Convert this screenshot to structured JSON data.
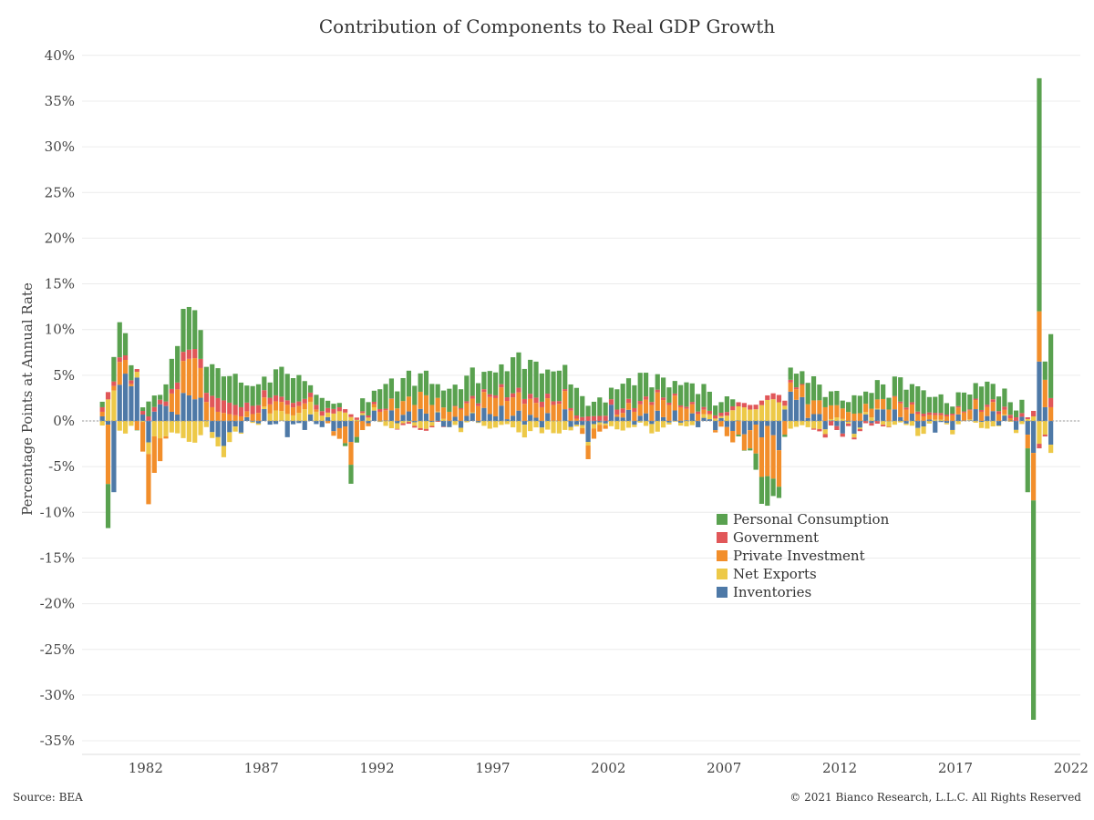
{
  "chart_data": {
    "type": "bar",
    "stacked": true,
    "title": "Contribution of Components to Real GDP Growth",
    "ylabel": "Percentage Points at Annual Rate",
    "xlabel": "",
    "ylim": [
      -35,
      40
    ],
    "yticks": [
      -35,
      -30,
      -25,
      -20,
      -15,
      -10,
      -5,
      0,
      5,
      10,
      15,
      20,
      25,
      30,
      35,
      40
    ],
    "ytick_format": "percent",
    "xticks": [
      1982,
      1987,
      1992,
      1997,
      2002,
      2007,
      2012,
      2017,
      2022
    ],
    "x_range": [
      1979.25,
      2022.4
    ],
    "grid": "horizontal",
    "legend_position": "center-right",
    "series": [
      {
        "name": "Personal Consumption",
        "color": "#59A14F",
        "key": "pce"
      },
      {
        "name": "Government",
        "color": "#E15759",
        "key": "gov"
      },
      {
        "name": "Private Investment",
        "color": "#F28E2B",
        "key": "inv"
      },
      {
        "name": "Net Exports",
        "color": "#EDC948",
        "key": "nx"
      },
      {
        "name": "Inventories",
        "color": "#4E79A7",
        "key": "cip"
      }
    ],
    "anchors": [
      {
        "t": 1980.0,
        "pce": 0.6,
        "gov": 0.5,
        "inv": 0.5,
        "nx": -0.5,
        "cip": 0.5
      },
      {
        "t": 1980.25,
        "pce": -5.5,
        "gov": 0.8,
        "inv": -6.5,
        "nx": 2.0,
        "cip": -1.0
      },
      {
        "t": 1980.5,
        "pce": 2.5,
        "gov": 0.5,
        "inv": 0.5,
        "nx": 3.0,
        "cip": -7.0
      },
      {
        "t": 1980.75,
        "pce": 4.0,
        "gov": 0.5,
        "inv": 2.5,
        "nx": -1.0,
        "cip": 3.5
      },
      {
        "t": 1981.0,
        "pce": 2.0,
        "gov": 0.5,
        "inv": 1.5,
        "nx": -1.0,
        "cip": 5.0
      },
      {
        "t": 1981.5,
        "pce": 0.5,
        "gov": 0.3,
        "inv": -1.0,
        "nx": 0.5,
        "cip": 4.0
      },
      {
        "t": 1982.0,
        "pce": 1.5,
        "gov": 0.5,
        "inv": -5.5,
        "nx": -1.5,
        "cip": -2.0
      },
      {
        "t": 1982.5,
        "pce": 1.0,
        "gov": 0.5,
        "inv": -2.5,
        "nx": -1.5,
        "cip": 2.5
      },
      {
        "t": 1983.0,
        "pce": 2.5,
        "gov": 0.5,
        "inv": 2.0,
        "nx": -1.5,
        "cip": 0.5
      },
      {
        "t": 1983.5,
        "pce": 5.0,
        "gov": 1.0,
        "inv": 3.5,
        "nx": -2.0,
        "cip": 2.5
      },
      {
        "t": 1984.0,
        "pce": 4.0,
        "gov": 1.0,
        "inv": 4.5,
        "nx": -2.0,
        "cip": 3.0
      },
      {
        "t": 1984.5,
        "pce": 3.5,
        "gov": 1.0,
        "inv": 2.0,
        "nx": -1.0,
        "cip": 0.5
      },
      {
        "t": 1985.0,
        "pce": 3.0,
        "gov": 1.5,
        "inv": 1.0,
        "nx": -1.0,
        "cip": -2.5
      },
      {
        "t": 1986.0,
        "pce": 2.5,
        "gov": 1.0,
        "inv": 0.5,
        "nx": -0.5,
        "cip": -0.5
      },
      {
        "t": 1987.0,
        "pce": 2.0,
        "gov": 0.8,
        "inv": 1.0,
        "nx": 0.5,
        "cip": 0.5
      },
      {
        "t": 1988.0,
        "pce": 3.0,
        "gov": 0.5,
        "inv": 1.0,
        "nx": 1.0,
        "cip": -1.0
      },
      {
        "t": 1989.0,
        "pce": 1.5,
        "gov": 0.5,
        "inv": 0.5,
        "nx": 1.0,
        "cip": 0.0
      },
      {
        "t": 1990.0,
        "pce": 1.0,
        "gov": 0.5,
        "inv": -0.5,
        "nx": 0.8,
        "cip": -0.5
      },
      {
        "t": 1990.75,
        "pce": -2.0,
        "gov": 0.3,
        "inv": -2.5,
        "nx": 0.5,
        "cip": -1.5
      },
      {
        "t": 1991.25,
        "pce": 1.0,
        "gov": 0.2,
        "inv": -1.0,
        "nx": 0.5,
        "cip": 0.5
      },
      {
        "t": 1992.0,
        "pce": 2.5,
        "gov": 0.3,
        "inv": 1.0,
        "nx": -0.3,
        "cip": 0.3
      },
      {
        "t": 1993.0,
        "pce": 2.0,
        "gov": -0.2,
        "inv": 1.5,
        "nx": -0.5,
        "cip": 0.5
      },
      {
        "t": 1994.0,
        "pce": 2.5,
        "gov": -0.2,
        "inv": 2.0,
        "nx": -0.5,
        "cip": 0.8
      },
      {
        "t": 1995.0,
        "pce": 2.0,
        "gov": 0.0,
        "inv": 1.0,
        "nx": 0.0,
        "cip": -0.5
      },
      {
        "t": 1996.0,
        "pce": 2.5,
        "gov": 0.3,
        "inv": 1.5,
        "nx": -0.3,
        "cip": 0.5
      },
      {
        "t": 1997.0,
        "pce": 2.5,
        "gov": 0.3,
        "inv": 2.0,
        "nx": -0.5,
        "cip": 1.0
      },
      {
        "t": 1998.0,
        "pce": 3.5,
        "gov": 0.5,
        "inv": 2.0,
        "nx": -1.0,
        "cip": 0.5
      },
      {
        "t": 1999.0,
        "pce": 3.5,
        "gov": 0.6,
        "inv": 1.5,
        "nx": -1.0,
        "cip": 0.0
      },
      {
        "t": 2000.0,
        "pce": 3.0,
        "gov": 0.2,
        "inv": 2.0,
        "nx": -1.0,
        "cip": 0.5
      },
      {
        "t": 2001.0,
        "pce": 1.5,
        "gov": 0.5,
        "inv": -1.5,
        "nx": 0.0,
        "cip": -1.5
      },
      {
        "t": 2002.0,
        "pce": 2.0,
        "gov": 0.6,
        "inv": 0.0,
        "nx": -0.8,
        "cip": 1.0
      },
      {
        "t": 2003.0,
        "pce": 2.5,
        "gov": 0.4,
        "inv": 1.0,
        "nx": -0.5,
        "cip": 0.3
      },
      {
        "t": 2004.0,
        "pce": 2.0,
        "gov": 0.3,
        "inv": 2.0,
        "nx": -0.8,
        "cip": 0.5
      },
      {
        "t": 2005.0,
        "pce": 2.0,
        "gov": 0.2,
        "inv": 1.5,
        "nx": -0.3,
        "cip": 0.3
      },
      {
        "t": 2006.0,
        "pce": 2.0,
        "gov": 0.3,
        "inv": 0.5,
        "nx": 0.0,
        "cip": 0.0
      },
      {
        "t": 2007.0,
        "pce": 1.5,
        "gov": 0.4,
        "inv": -1.0,
        "nx": 0.8,
        "cip": -0.5
      },
      {
        "t": 2008.0,
        "pce": -1.0,
        "gov": 0.5,
        "inv": -2.0,
        "nx": 1.5,
        "cip": -1.0
      },
      {
        "t": 2008.75,
        "pce": -3.5,
        "gov": 0.5,
        "inv": -5.5,
        "nx": 2.0,
        "cip": -1.0
      },
      {
        "t": 2009.25,
        "pce": -0.5,
        "gov": 0.8,
        "inv": -4.0,
        "nx": 2.0,
        "cip": -2.5
      },
      {
        "t": 2009.75,
        "pce": 1.0,
        "gov": 0.3,
        "inv": 1.0,
        "nx": -0.5,
        "cip": 3.5
      },
      {
        "t": 2010.5,
        "pce": 2.0,
        "gov": 0.0,
        "inv": 1.5,
        "nx": -1.0,
        "cip": 1.0
      },
      {
        "t": 2011.5,
        "pce": 1.5,
        "gov": -0.5,
        "inv": 1.5,
        "nx": 0.0,
        "cip": -0.5
      },
      {
        "t": 2012.5,
        "pce": 1.5,
        "gov": -0.2,
        "inv": 0.8,
        "nx": 0.0,
        "cip": -1.0
      },
      {
        "t": 2013.5,
        "pce": 1.5,
        "gov": -0.3,
        "inv": 1.0,
        "nx": 0.0,
        "cip": 1.0
      },
      {
        "t": 2014.5,
        "pce": 2.5,
        "gov": 0.2,
        "inv": 1.5,
        "nx": -0.5,
        "cip": 0.5
      },
      {
        "t": 2015.5,
        "pce": 2.0,
        "gov": 0.3,
        "inv": 0.5,
        "nx": -0.5,
        "cip": -0.5
      },
      {
        "t": 2016.5,
        "pce": 1.5,
        "gov": 0.2,
        "inv": 0.5,
        "nx": 0.0,
        "cip": -0.5
      },
      {
        "t": 2017.5,
        "pce": 1.8,
        "gov": 0.1,
        "inv": 1.0,
        "nx": -0.3,
        "cip": 0.5
      },
      {
        "t": 2018.5,
        "pce": 2.0,
        "gov": 0.3,
        "inv": 1.0,
        "nx": -0.5,
        "cip": 0.5
      },
      {
        "t": 2019.5,
        "pce": 1.5,
        "gov": 0.4,
        "inv": 0.0,
        "nx": 0.0,
        "cip": -0.3
      }
    ],
    "quarters_2020_2021": [
      {
        "t": 2020.0,
        "pce": -4.8,
        "gov": 0.2,
        "inv": -1.5,
        "nx": 0.2,
        "cip": -1.5
      },
      {
        "t": 2020.25,
        "pce": -24.0,
        "gov": 0.6,
        "inv": -5.2,
        "nx": 0.5,
        "cip": -3.5
      },
      {
        "t": 2020.5,
        "pce": 25.5,
        "gov": -0.5,
        "inv": 5.5,
        "nx": -2.5,
        "cip": 6.5
      },
      {
        "t": 2020.75,
        "pce": 2.0,
        "gov": -0.2,
        "inv": 3.0,
        "nx": -1.5,
        "cip": 1.5
      },
      {
        "t": 2021.0,
        "pce": 7.0,
        "gov": 1.0,
        "inv": 1.5,
        "nx": -0.9,
        "cip": -2.6
      }
    ]
  },
  "legend": {
    "items": [
      {
        "label": "Personal Consumption",
        "color": "#59A14F"
      },
      {
        "label": "Government",
        "color": "#E15759"
      },
      {
        "label": "Private Investment",
        "color": "#F28E2B"
      },
      {
        "label": "Net Exports",
        "color": "#EDC948"
      },
      {
        "label": "Inventories",
        "color": "#4E79A7"
      }
    ]
  },
  "footer": {
    "source": "Source: BEA",
    "copyright": "© 2021 Bianco Research, L.L.C. All Rights Reserved"
  }
}
